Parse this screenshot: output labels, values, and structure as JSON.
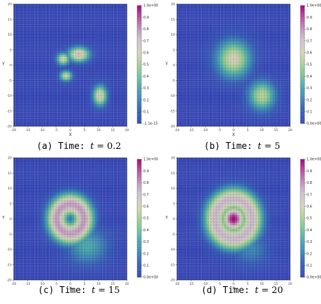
{
  "chart_data": [
    {
      "type": "heatmap",
      "caption_prefix": "(a) Time: ",
      "caption_math": "= 0.2",
      "caption_var": "t",
      "xlabel": "X",
      "ylabel": "Y",
      "xlim": [
        -20,
        20
      ],
      "ylim": [
        -20,
        20
      ],
      "xticks": [
        "-20",
        "-15",
        "-10",
        "-5",
        "0",
        "5",
        "10",
        "15",
        "20"
      ],
      "yticks": [
        "20",
        "15",
        "10",
        "5",
        "0",
        "-5",
        "-10",
        "-15",
        "-20"
      ],
      "colorbar": {
        "max_label": "1.0e+00",
        "min_label": "-1.1e-15",
        "labels": [
          "0.9",
          "0.8",
          "0.7",
          "0.6",
          "0.5",
          "0.4",
          "0.3",
          "0.2",
          "0.1"
        ]
      },
      "blobs": [
        {
          "x": 3,
          "y": 3.5,
          "sx": 2.6,
          "sy": 1.7,
          "amp": 0.72
        },
        {
          "x": -2.5,
          "y": 2,
          "sx": 1.6,
          "sy": 1.4,
          "amp": 0.62
        },
        {
          "x": -1.5,
          "y": -3.5,
          "sx": 1.5,
          "sy": 1.2,
          "amp": 0.6
        },
        {
          "x": 10.5,
          "y": -10,
          "sx": 1.7,
          "sy": 2.3,
          "amp": 0.68
        }
      ],
      "rings": []
    },
    {
      "type": "heatmap",
      "caption_prefix": "(b) Time: ",
      "caption_math": "= 5",
      "caption_var": "t",
      "xlabel": "X",
      "ylabel": "Y",
      "xlim": [
        -20,
        20
      ],
      "ylim": [
        -20,
        20
      ],
      "xticks": [
        "-20",
        "-15",
        "-10",
        "-5",
        "0",
        "5",
        "10",
        "15",
        "20"
      ],
      "yticks": [
        "20",
        "15",
        "10",
        "5",
        "0",
        "-5",
        "-10",
        "-15",
        "-20"
      ],
      "colorbar": {
        "max_label": "1.0e+00",
        "min_label": "0.0e+00",
        "labels": [
          "0.9",
          "0.8",
          "0.7",
          "0.6",
          "0.5",
          "0.4",
          "0.3",
          "0.2",
          "0.1"
        ]
      },
      "blobs": [
        {
          "x": 0,
          "y": 2,
          "sx": 4.2,
          "sy": 4.2,
          "amp": 0.62
        },
        {
          "x": 10,
          "y": -10,
          "sx": 3.3,
          "sy": 3.3,
          "amp": 0.55
        }
      ],
      "rings": []
    },
    {
      "type": "heatmap",
      "caption_prefix": "(c) Time: ",
      "caption_math": "= 15",
      "caption_var": "t",
      "xlabel": "X",
      "ylabel": "Y",
      "xlim": [
        -20,
        20
      ],
      "ylim": [
        -20,
        20
      ],
      "xticks": [
        "-20",
        "-15",
        "-10",
        "-5",
        "0",
        "5",
        "10",
        "15",
        "20"
      ],
      "yticks": [
        "20",
        "15",
        "10",
        "5",
        "0",
        "-5",
        "-10",
        "-15",
        "-20"
      ],
      "colorbar": {
        "max_label": "1.0e+00",
        "min_label": "0.0e+00",
        "labels": [
          "0.9",
          "0.8",
          "0.7",
          "0.6",
          "0.5",
          "0.4",
          "0.3",
          "0.2",
          "0.1"
        ]
      },
      "blobs": [
        {
          "x": 6,
          "y": -9,
          "sx": 5,
          "sy": 4,
          "amp": 0.32
        }
      ],
      "rings": [
        {
          "x": 0,
          "y": 0,
          "r": 4.8,
          "w": 2.6,
          "amp": 0.78
        }
      ]
    },
    {
      "type": "heatmap",
      "caption_prefix": "(d) Time: ",
      "caption_math": "= 20",
      "caption_var": "t",
      "xlabel": "X",
      "ylabel": "Y",
      "xlim": [
        -20,
        20
      ],
      "ylim": [
        -20,
        20
      ],
      "xticks": [
        "-20",
        "-15",
        "-10",
        "-5",
        "0",
        "5",
        "10",
        "15",
        "20"
      ],
      "yticks": [
        "20",
        "15",
        "10",
        "5",
        "0",
        "-5",
        "-10",
        "-15",
        "-20"
      ],
      "colorbar": {
        "max_label": "1.0e+00",
        "min_label": "0.0e+00",
        "labels": [
          "0.9",
          "0.8",
          "0.7",
          "0.6",
          "0.5",
          "0.4",
          "0.3",
          "0.2",
          "0.1"
        ]
      },
      "blobs": [
        {
          "x": 0,
          "y": 0,
          "sx": 2.8,
          "sy": 2.8,
          "amp": 1.0
        },
        {
          "x": 6,
          "y": -10,
          "sx": 4.5,
          "sy": 3.5,
          "amp": 0.22
        }
      ],
      "rings": [
        {
          "x": 0,
          "y": 0,
          "r": 6.5,
          "w": 2.8,
          "amp": 0.72
        }
      ]
    }
  ]
}
